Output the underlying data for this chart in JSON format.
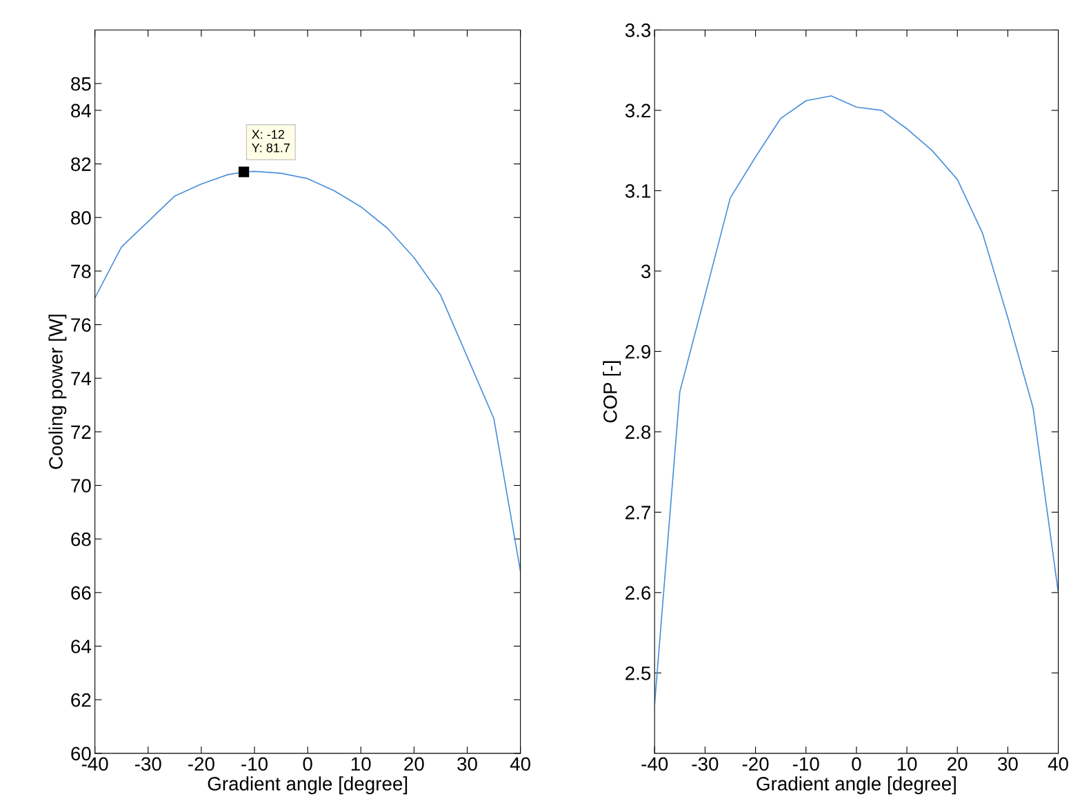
{
  "chart_data": [
    {
      "type": "line",
      "xlabel": "Gradient angle [degree]",
      "ylabel": "Cooling power [W]",
      "x": [
        -40,
        -35,
        -30,
        -25,
        -20,
        -15,
        -12,
        -10,
        -5,
        0,
        5,
        10,
        15,
        20,
        25,
        30,
        35,
        40
      ],
      "series": [
        {
          "color": "#4a8fdb",
          "values": [
            77.0,
            78.9,
            79.85,
            80.8,
            81.25,
            81.6,
            81.7,
            81.72,
            81.65,
            81.45,
            81.0,
            80.4,
            79.6,
            78.5,
            77.1,
            74.8,
            72.5,
            66.8
          ]
        }
      ],
      "xlim": [
        -40,
        40
      ],
      "xticks": [
        -40,
        -30,
        -20,
        -10,
        0,
        10,
        20,
        30,
        40
      ],
      "ylim": [
        60,
        87
      ],
      "yticks": [
        60,
        62,
        64,
        66,
        68,
        70,
        72,
        74,
        76,
        78,
        80,
        82,
        84,
        85
      ],
      "annotations": [
        {
          "text": "X: -12\nY: 81.7",
          "x": -12,
          "y": 81.7
        }
      ],
      "grid": false,
      "legend": false,
      "marker": "none",
      "line_style": "solid"
    },
    {
      "type": "line",
      "xlabel": "Gradient angle [degree]",
      "ylabel": "COP [-]",
      "x": [
        -40,
        -35,
        -30,
        -25,
        -20,
        -15,
        -10,
        -5,
        0,
        5,
        10,
        15,
        20,
        25,
        30,
        35,
        40
      ],
      "series": [
        {
          "color": "#4a8fdb",
          "values": [
            2.461,
            2.85,
            2.97,
            3.091,
            3.142,
            3.19,
            3.212,
            3.218,
            3.204,
            3.2,
            3.177,
            3.15,
            3.114,
            3.047,
            2.942,
            2.83,
            2.6
          ]
        }
      ],
      "xlim": [
        -40,
        40
      ],
      "xticks": [
        -40,
        -30,
        -20,
        -10,
        0,
        10,
        20,
        30,
        40
      ],
      "ylim": [
        2.4,
        3.3
      ],
      "yticks": [
        2.5,
        2.6,
        2.7,
        2.8,
        2.9,
        3,
        3.1,
        3.2,
        3.3
      ],
      "grid": false,
      "legend": false,
      "marker": "none",
      "line_style": "solid"
    }
  ]
}
